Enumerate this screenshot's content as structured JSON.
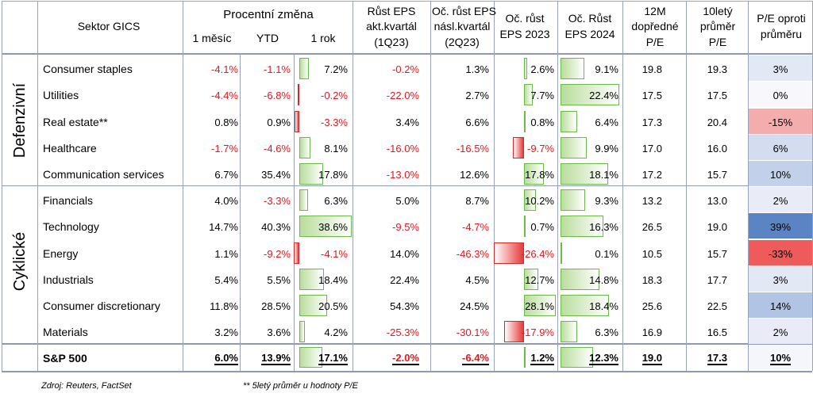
{
  "columns": {
    "sector": "Sektor GICS",
    "pct_change": "Procentní změna",
    "m1": "1 měsíc",
    "ytd": "YTD",
    "y1": "1 rok",
    "eps_cur_l1": "Růst EPS",
    "eps_cur_l2": "akt.kvartál",
    "eps_cur_l3": "(1Q23)",
    "eps_next_l1": "Oč. růst EPS",
    "eps_next_l2": "násl.kvartál",
    "eps_next_l3": "(2Q23)",
    "eps23_l1": "Oč. růst",
    "eps23_l2": "EPS 2023",
    "eps24_l1": "Oč. Růst",
    "eps24_l2": "EPS 2024",
    "fwd_l1": "12M",
    "fwd_l2": "dopředné",
    "fwd_l3": "P/E",
    "avg_l1": "10letý",
    "avg_l2": "průměr",
    "avg_l3": "P/E",
    "rel_l1": "P/E oproti",
    "rel_l2": "průměru"
  },
  "groups": {
    "defensive": "Defenzivní",
    "cyclical": "Cyklické"
  },
  "rows": [
    {
      "sector": "Consumer staples",
      "m1": "-4.1%",
      "ytd": "-1.1%",
      "y1": "7.2%",
      "eps_cur": "-0.2%",
      "eps_next": "1.3%",
      "eps23": "2.6%",
      "eps24": "9.1%",
      "fwd_pe": "19.8",
      "avg_pe": "19.3",
      "rel": "3%"
    },
    {
      "sector": "Utilities",
      "m1": "-4.4%",
      "ytd": "-6.8%",
      "y1": "-0.2%",
      "eps_cur": "-22.0%",
      "eps_next": "2.7%",
      "eps23": "7.7%",
      "eps24": "22.4%",
      "fwd_pe": "17.5",
      "avg_pe": "17.5",
      "rel": "0%"
    },
    {
      "sector": "Real estate**",
      "m1": "0.8%",
      "ytd": "0.9%",
      "y1": "-3.3%",
      "eps_cur": "3.4%",
      "eps_next": "6.6%",
      "eps23": "0.8%",
      "eps24": "6.4%",
      "fwd_pe": "17.3",
      "avg_pe": "20.4",
      "rel": "-15%"
    },
    {
      "sector": "Healthcare",
      "m1": "-1.7%",
      "ytd": "-4.6%",
      "y1": "8.1%",
      "eps_cur": "-16.0%",
      "eps_next": "-16.5%",
      "eps23": "-9.7%",
      "eps24": "9.9%",
      "fwd_pe": "17.0",
      "avg_pe": "16.0",
      "rel": "6%"
    },
    {
      "sector": "Communication services",
      "m1": "6.7%",
      "ytd": "35.4%",
      "y1": "17.8%",
      "eps_cur": "-13.0%",
      "eps_next": "12.6%",
      "eps23": "17.8%",
      "eps24": "18.1%",
      "fwd_pe": "17.2",
      "avg_pe": "15.7",
      "rel": "10%"
    },
    {
      "sector": "Financials",
      "m1": "4.0%",
      "ytd": "-3.3%",
      "y1": "6.3%",
      "eps_cur": "5.0%",
      "eps_next": "8.7%",
      "eps23": "10.2%",
      "eps24": "9.3%",
      "fwd_pe": "13.2",
      "avg_pe": "13.0",
      "rel": "2%"
    },
    {
      "sector": "Technology",
      "m1": "14.7%",
      "ytd": "40.3%",
      "y1": "38.6%",
      "eps_cur": "-9.5%",
      "eps_next": "-4.7%",
      "eps23": "0.7%",
      "eps24": "16.3%",
      "fwd_pe": "26.5",
      "avg_pe": "19.0",
      "rel": "39%"
    },
    {
      "sector": "Energy",
      "m1": "1.1%",
      "ytd": "-9.2%",
      "y1": "-4.1%",
      "eps_cur": "14.0%",
      "eps_next": "-46.3%",
      "eps23": "-26.4%",
      "eps24": "0.1%",
      "fwd_pe": "10.5",
      "avg_pe": "15.7",
      "rel": "-33%"
    },
    {
      "sector": "Industrials",
      "m1": "5.4%",
      "ytd": "5.5%",
      "y1": "18.4%",
      "eps_cur": "22.4%",
      "eps_next": "4.5%",
      "eps23": "12.7%",
      "eps24": "14.8%",
      "fwd_pe": "18.3",
      "avg_pe": "17.7",
      "rel": "3%"
    },
    {
      "sector": "Consumer discretionary",
      "m1": "11.8%",
      "ytd": "28.5%",
      "y1": "20.5%",
      "eps_cur": "54.3%",
      "eps_next": "24.5%",
      "eps23": "28.1%",
      "eps24": "18.4%",
      "fwd_pe": "25.6",
      "avg_pe": "22.5",
      "rel": "14%"
    },
    {
      "sector": "Materials",
      "m1": "3.2%",
      "ytd": "3.6%",
      "y1": "4.2%",
      "eps_cur": "-25.3%",
      "eps_next": "-30.1%",
      "eps23": "-17.9%",
      "eps24": "6.3%",
      "fwd_pe": "16.9",
      "avg_pe": "16.5",
      "rel": "2%"
    }
  ],
  "total": {
    "sector": "S&P 500",
    "m1": "6.0%",
    "ytd": "13.9%",
    "y1": "17.1%",
    "eps_cur": "-2.0%",
    "eps_next": "-6.4%",
    "eps23": "1.2%",
    "eps24": "12.3%",
    "fwd_pe": "19.0",
    "avg_pe": "17.3",
    "rel": "10%"
  },
  "footnotes": {
    "source": "Zdroj: Reuters, FactSet",
    "note": "** 5letý průměr u hodnoty P/E"
  },
  "colors": {
    "negative_text": "#e0181f",
    "positive_bar": "#b9dd9c",
    "negative_bar": "#e63b3b",
    "rel_high": "#5b84c4",
    "rel_low": "#ef5a5a",
    "grid": "#9aa3b8"
  }
}
